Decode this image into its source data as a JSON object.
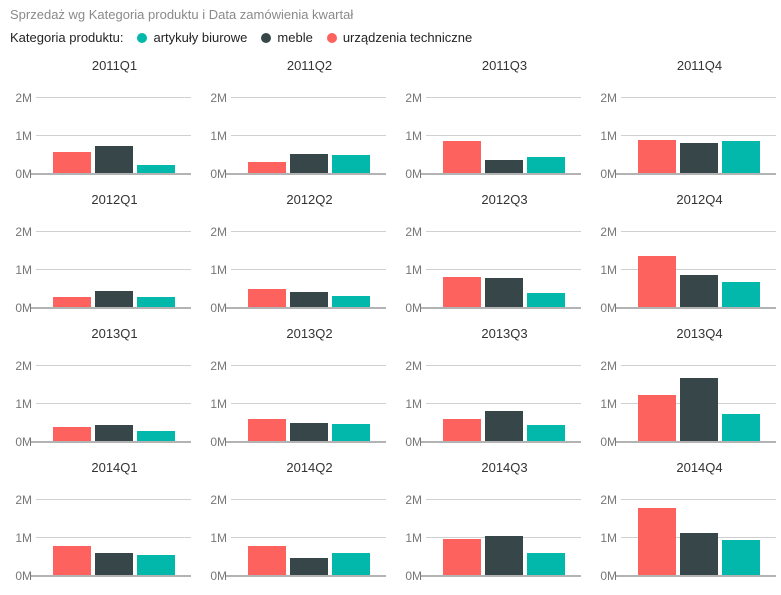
{
  "title": "Sprzedaż wg Kategoria produktu i Data zamówienia kwartał",
  "legend": {
    "label": "Kategoria produktu:",
    "items": [
      {
        "name": "artykuły biurowe",
        "slug": "artykuly-biurowe",
        "color": "#01B8AA"
      },
      {
        "name": "meble",
        "slug": "meble",
        "color": "#374649"
      },
      {
        "name": "urządzenia techniczne",
        "slug": "urzadzenia-techniczne",
        "color": "#FD625E"
      }
    ]
  },
  "chart_data": {
    "type": "bar",
    "layout": "small-multiples-4x4",
    "facets": [
      "2011Q1",
      "2011Q2",
      "2011Q3",
      "2011Q4",
      "2012Q1",
      "2012Q2",
      "2012Q3",
      "2012Q4",
      "2013Q1",
      "2013Q2",
      "2013Q3",
      "2013Q4",
      "2014Q1",
      "2014Q2",
      "2014Q3",
      "2014Q4"
    ],
    "value_unit": "M",
    "yticks": [
      {
        "value": 0,
        "label": "0M"
      },
      {
        "value": 1,
        "label": "1M"
      },
      {
        "value": 2,
        "label": "2M"
      }
    ],
    "ylim": [
      0,
      2.3
    ],
    "grid": true,
    "legend_position": "top",
    "series": [
      {
        "name": "urządzenia techniczne",
        "slug": "urzadzenia-techniczne",
        "color": "#FD625E",
        "values": [
          0.55,
          0.28,
          0.85,
          0.87,
          0.27,
          0.48,
          0.8,
          1.35,
          0.38,
          0.57,
          0.58,
          1.2,
          0.76,
          0.77,
          0.95,
          1.75
        ]
      },
      {
        "name": "meble",
        "slug": "meble",
        "color": "#374649",
        "values": [
          0.7,
          0.5,
          0.35,
          0.78,
          0.43,
          0.4,
          0.75,
          0.83,
          0.42,
          0.47,
          0.8,
          1.65,
          0.57,
          0.46,
          1.02,
          1.1
        ]
      },
      {
        "name": "artykuły biurowe",
        "slug": "artykuly-biurowe",
        "color": "#01B8AA",
        "values": [
          0.22,
          0.48,
          0.42,
          0.84,
          0.25,
          0.28,
          0.37,
          0.65,
          0.27,
          0.46,
          0.43,
          0.7,
          0.53,
          0.58,
          0.57,
          0.93
        ]
      }
    ]
  }
}
